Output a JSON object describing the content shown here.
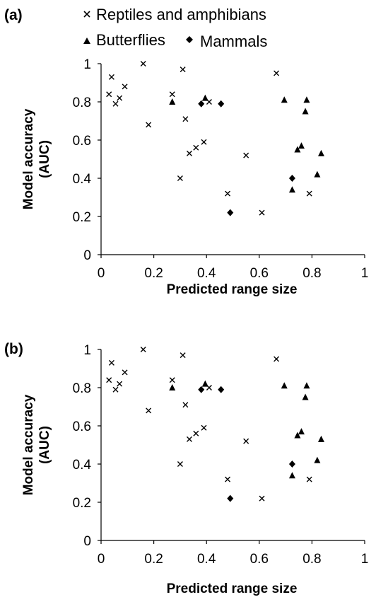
{
  "legend": {
    "reptiles": "Reptiles and amphibians",
    "butterflies": "Butterflies",
    "mammals": "Mammals"
  },
  "chart_data": [
    {
      "type": "scatter",
      "panel_label": "(a)",
      "xlabel": "Predicted range size",
      "ylabel_line1": "Model accuracy",
      "ylabel_line2": "(AUC)",
      "xlim": [
        0,
        1
      ],
      "ylim": [
        0,
        1
      ],
      "xticks": [
        "0",
        "0.2",
        "0.4",
        "0.6",
        "0.8",
        "1"
      ],
      "yticks": [
        "0",
        "0.2",
        "0.4",
        "0.6",
        "0.8",
        "1"
      ],
      "grid": false,
      "legend_position": "top",
      "series": [
        {
          "name": "Reptiles and amphibians",
          "marker": "cross",
          "points": [
            [
              0.03,
              0.84
            ],
            [
              0.04,
              0.93
            ],
            [
              0.055,
              0.79
            ],
            [
              0.07,
              0.82
            ],
            [
              0.09,
              0.88
            ],
            [
              0.16,
              1.0
            ],
            [
              0.18,
              0.68
            ],
            [
              0.27,
              0.84
            ],
            [
              0.3,
              0.4
            ],
            [
              0.31,
              0.97
            ],
            [
              0.32,
              0.71
            ],
            [
              0.335,
              0.53
            ],
            [
              0.36,
              0.56
            ],
            [
              0.39,
              0.59
            ],
            [
              0.41,
              0.8
            ],
            [
              0.48,
              0.32
            ],
            [
              0.55,
              0.52
            ],
            [
              0.61,
              0.22
            ],
            [
              0.665,
              0.95
            ],
            [
              0.79,
              0.32
            ]
          ]
        },
        {
          "name": "Butterflies",
          "marker": "triangle",
          "points": [
            [
              0.27,
              0.8
            ],
            [
              0.395,
              0.82
            ],
            [
              0.695,
              0.81
            ],
            [
              0.725,
              0.34
            ],
            [
              0.745,
              0.55
            ],
            [
              0.76,
              0.57
            ],
            [
              0.775,
              0.75
            ],
            [
              0.78,
              0.81
            ],
            [
              0.82,
              0.42
            ],
            [
              0.835,
              0.53
            ]
          ]
        },
        {
          "name": "Mammals",
          "marker": "diamond",
          "points": [
            [
              0.38,
              0.79
            ],
            [
              0.455,
              0.79
            ],
            [
              0.49,
              0.22
            ],
            [
              0.725,
              0.4
            ]
          ]
        }
      ]
    },
    {
      "type": "scatter",
      "panel_label": "(b)",
      "xlabel": "Predicted range size",
      "ylabel_line1": "Model accuracy",
      "ylabel_line2": "(AUC)",
      "xlim": [
        0,
        1
      ],
      "ylim": [
        0,
        1
      ],
      "xticks": [
        "0",
        "0.2",
        "0.4",
        "0.6",
        "0.8",
        "1"
      ],
      "yticks": [
        "0",
        "0.2",
        "0.4",
        "0.6",
        "0.8",
        "1"
      ],
      "grid": false,
      "series": [
        {
          "name": "Reptiles and amphibians",
          "marker": "cross",
          "points": [
            [
              0.03,
              0.84
            ],
            [
              0.04,
              0.93
            ],
            [
              0.055,
              0.79
            ],
            [
              0.07,
              0.82
            ],
            [
              0.09,
              0.88
            ],
            [
              0.16,
              1.0
            ],
            [
              0.18,
              0.68
            ],
            [
              0.27,
              0.84
            ],
            [
              0.3,
              0.4
            ],
            [
              0.31,
              0.97
            ],
            [
              0.32,
              0.71
            ],
            [
              0.335,
              0.53
            ],
            [
              0.36,
              0.56
            ],
            [
              0.39,
              0.59
            ],
            [
              0.41,
              0.8
            ],
            [
              0.48,
              0.32
            ],
            [
              0.55,
              0.52
            ],
            [
              0.61,
              0.22
            ],
            [
              0.665,
              0.95
            ],
            [
              0.79,
              0.32
            ]
          ]
        },
        {
          "name": "Butterflies",
          "marker": "triangle",
          "points": [
            [
              0.27,
              0.8
            ],
            [
              0.395,
              0.82
            ],
            [
              0.695,
              0.81
            ],
            [
              0.725,
              0.34
            ],
            [
              0.745,
              0.55
            ],
            [
              0.76,
              0.57
            ],
            [
              0.775,
              0.75
            ],
            [
              0.78,
              0.81
            ],
            [
              0.82,
              0.42
            ],
            [
              0.835,
              0.53
            ]
          ]
        },
        {
          "name": "Mammals",
          "marker": "diamond",
          "points": [
            [
              0.38,
              0.79
            ],
            [
              0.455,
              0.79
            ],
            [
              0.49,
              0.22
            ],
            [
              0.725,
              0.4
            ]
          ]
        }
      ]
    }
  ]
}
